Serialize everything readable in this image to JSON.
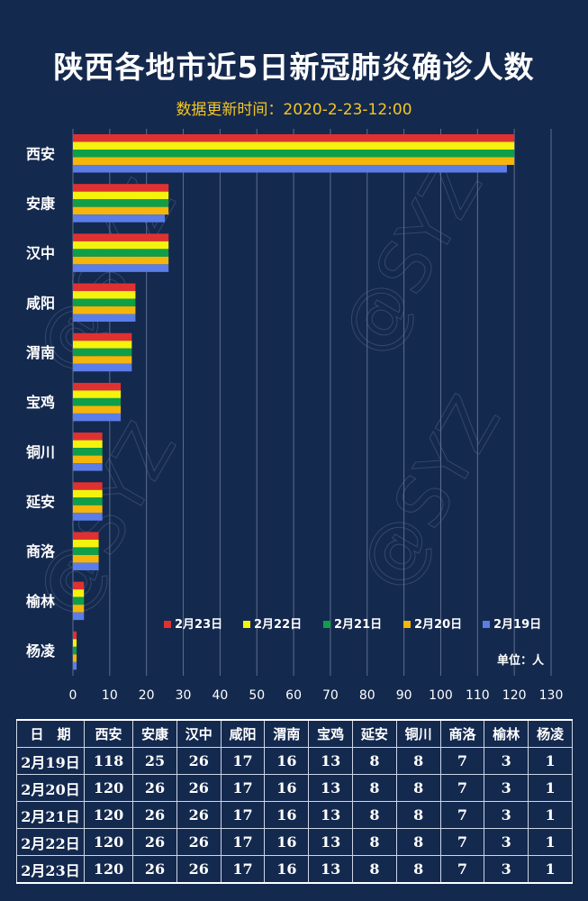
{
  "header": {
    "title": "陕西各地市近5日新冠肺炎确诊人数",
    "subtitle": "数据更新时间：2020-2-23-12:00"
  },
  "watermark": "@SYZ",
  "colors": {
    "background": "#14294e",
    "grid": "#5d6f8f",
    "series": [
      "#e03131",
      "#f5f20d",
      "#0e9f48",
      "#f5b50a",
      "#5a7de8"
    ]
  },
  "chart_data": {
    "type": "bar",
    "orientation": "horizontal",
    "categories": [
      "西安",
      "安康",
      "汉中",
      "咸阳",
      "渭南",
      "宝鸡",
      "铜川",
      "延安",
      "商洛",
      "榆林",
      "杨凌"
    ],
    "series": [
      {
        "name": "2月23日",
        "values": [
          120,
          26,
          26,
          17,
          16,
          13,
          8,
          8,
          7,
          3,
          1
        ]
      },
      {
        "name": "2月22日",
        "values": [
          120,
          26,
          26,
          17,
          16,
          13,
          8,
          8,
          7,
          3,
          1
        ]
      },
      {
        "name": "2月21日",
        "values": [
          120,
          26,
          26,
          17,
          16,
          13,
          8,
          8,
          7,
          3,
          1
        ]
      },
      {
        "name": "2月20日",
        "values": [
          120,
          26,
          26,
          17,
          16,
          13,
          8,
          8,
          7,
          3,
          1
        ]
      },
      {
        "name": "2月19日",
        "values": [
          118,
          25,
          26,
          17,
          16,
          13,
          8,
          8,
          7,
          3,
          1
        ]
      }
    ],
    "xlim": [
      0,
      130
    ],
    "xticks": [
      0,
      10,
      20,
      30,
      40,
      50,
      60,
      70,
      80,
      90,
      100,
      110,
      120,
      130
    ],
    "grid": true,
    "legend": "bottom-right",
    "unit_label": "单位：人"
  },
  "table": {
    "headers": [
      "日　期",
      "西安",
      "安康",
      "汉中",
      "咸阳",
      "渭南",
      "宝鸡",
      "延安",
      "铜川",
      "商洛",
      "榆林",
      "杨凌"
    ],
    "rows": [
      [
        "2月19日",
        "118",
        "25",
        "26",
        "17",
        "16",
        "13",
        "8",
        "8",
        "7",
        "3",
        "1"
      ],
      [
        "2月20日",
        "120",
        "26",
        "26",
        "17",
        "16",
        "13",
        "8",
        "8",
        "7",
        "3",
        "1"
      ],
      [
        "2月21日",
        "120",
        "26",
        "26",
        "17",
        "16",
        "13",
        "8",
        "8",
        "7",
        "3",
        "1"
      ],
      [
        "2月22日",
        "120",
        "26",
        "26",
        "17",
        "16",
        "13",
        "8",
        "8",
        "7",
        "3",
        "1"
      ],
      [
        "2月23日",
        "120",
        "26",
        "26",
        "17",
        "16",
        "13",
        "8",
        "8",
        "7",
        "3",
        "1"
      ]
    ]
  }
}
